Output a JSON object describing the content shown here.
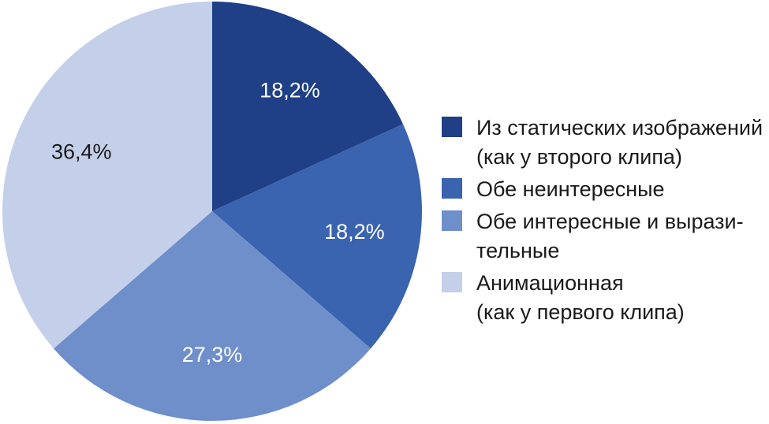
{
  "chart_data": {
    "type": "pie",
    "title": "",
    "legend_position": "right",
    "slices": [
      {
        "name": "Из статических изображений\n(как у второго клипа)",
        "value": 18.2,
        "label": "18,2%",
        "color": "#1f3f87",
        "label_color": "#ffffff"
      },
      {
        "name": "Обе неинтересные",
        "value": 18.2,
        "label": "18,2%",
        "color": "#3a63b0",
        "label_color": "#ffffff"
      },
      {
        "name": "Обе интересные и вырази-\nтельные",
        "value": 27.3,
        "label": "27,3%",
        "color": "#6f8fcb",
        "label_color": "#ffffff"
      },
      {
        "name": "Анимационная\n(как у первого клипа)",
        "value": 36.4,
        "label": "36,4%",
        "color": "#c4cfea",
        "label_color": "#1a1a1a"
      }
    ]
  }
}
